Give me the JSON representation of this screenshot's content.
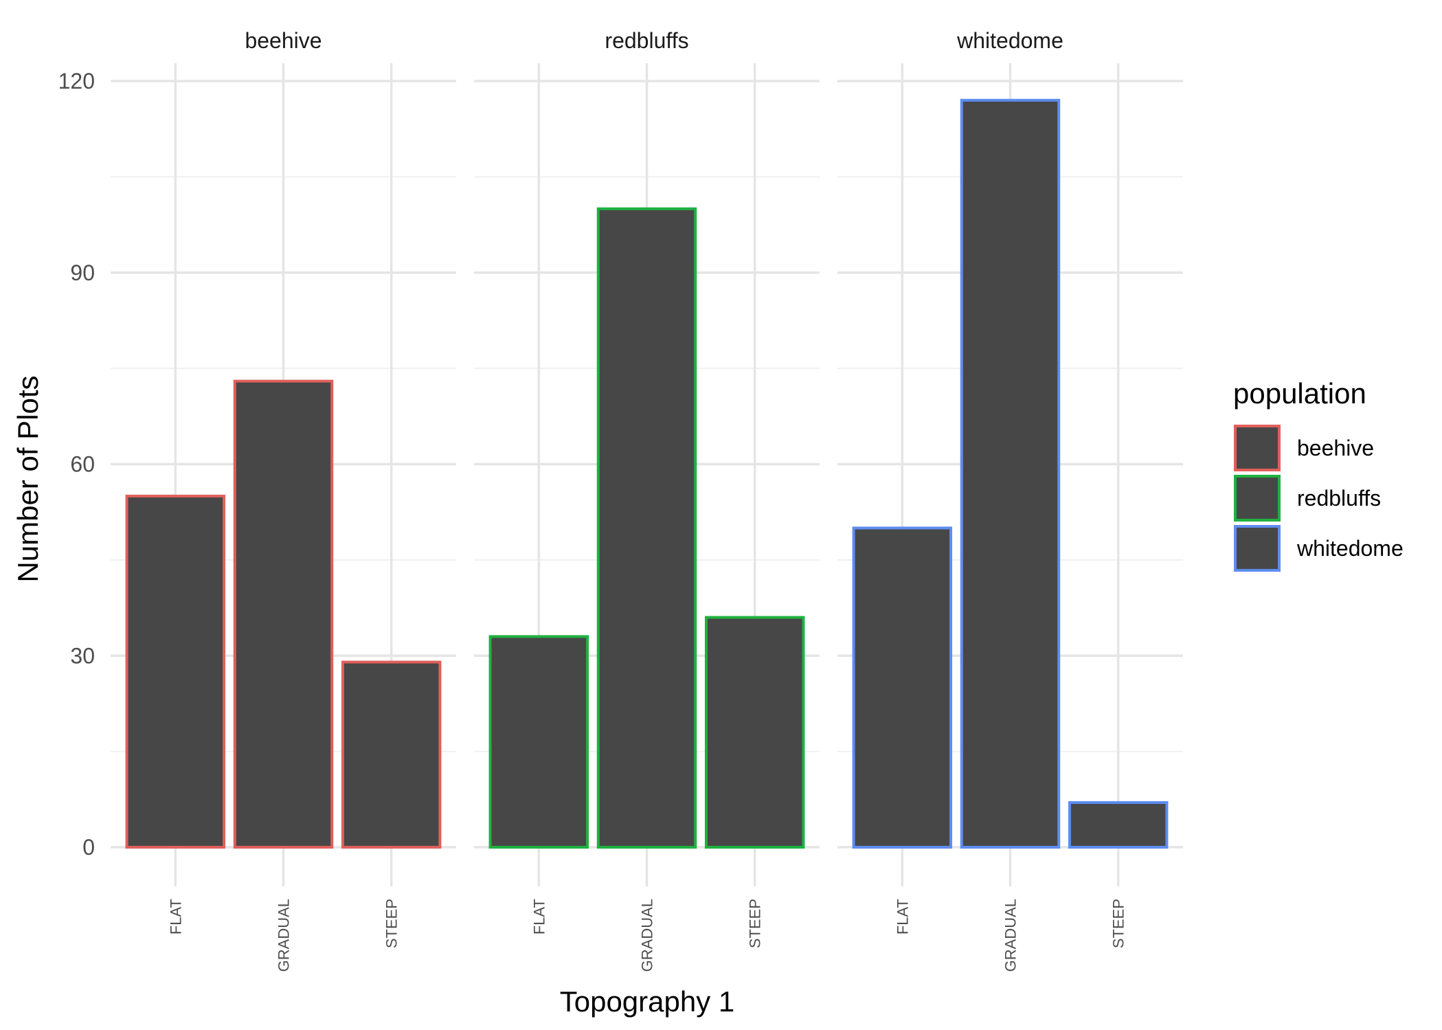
{
  "chart_data": {
    "type": "bar",
    "facets": [
      "beehive",
      "redbluffs",
      "whitedome"
    ],
    "categories": [
      "FLAT",
      "GRADUAL",
      "STEEP"
    ],
    "series": [
      {
        "name": "beehive",
        "values": [
          55,
          73,
          29
        ],
        "outline_color": "#e0605a"
      },
      {
        "name": "redbluffs",
        "values": [
          33,
          100,
          36
        ],
        "outline_color": "#1fb141"
      },
      {
        "name": "whitedome",
        "values": [
          50,
          117,
          7
        ],
        "outline_color": "#5e8df0"
      }
    ],
    "bar_fill": "#474747",
    "xlabel": "Topography 1",
    "ylabel": "Number of Plots",
    "ylim": [
      -6,
      123
    ],
    "yticks": [
      0,
      30,
      60,
      90,
      120
    ],
    "ytick_labels": [
      "0",
      "30",
      "60",
      "90",
      "120"
    ],
    "grid": true,
    "legend": {
      "title": "population",
      "position": "right",
      "entries": [
        "beehive",
        "redbluffs",
        "whitedome"
      ]
    }
  }
}
